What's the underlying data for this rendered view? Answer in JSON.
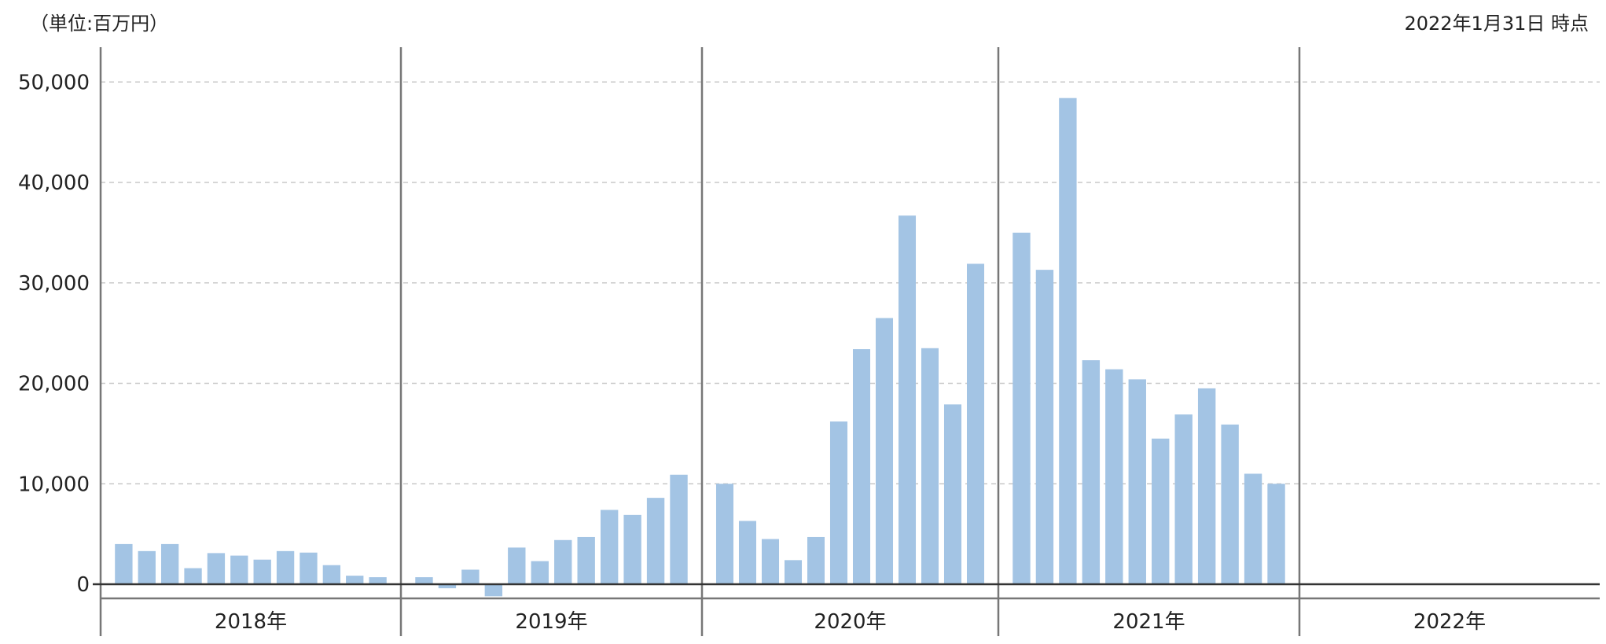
{
  "unit_label": "（単位:百万円）",
  "as_of_label": "2022年1月31日 時点",
  "chart_data": {
    "type": "bar",
    "y_ticks": [
      "0",
      "10,000",
      "20,000",
      "30,000",
      "40,000",
      "50,000"
    ],
    "ylim": [
      -1500,
      51000
    ],
    "grid": true,
    "bar_color": "#a3c4e4",
    "years": [
      {
        "label": "2018年",
        "values": [
          4000,
          3300,
          4000,
          1600,
          3100,
          2850,
          2450,
          3300,
          3150,
          1900,
          850,
          700
        ]
      },
      {
        "label": "2019年",
        "values": [
          700,
          -400,
          1450,
          -1200,
          3650,
          2300,
          4400,
          4700,
          7400,
          6900,
          8600,
          10900
        ]
      },
      {
        "label": "2020年",
        "values": [
          10000,
          6300,
          4500,
          2400,
          4700,
          16200,
          23400,
          26500,
          36700,
          23500,
          17900,
          31900
        ]
      },
      {
        "label": "2021年",
        "values": [
          35000,
          31300,
          48400,
          22300,
          21400,
          20400,
          14500,
          16900,
          19500,
          15900,
          11000,
          10000
        ]
      },
      {
        "label": "2022年",
        "values": []
      }
    ]
  }
}
